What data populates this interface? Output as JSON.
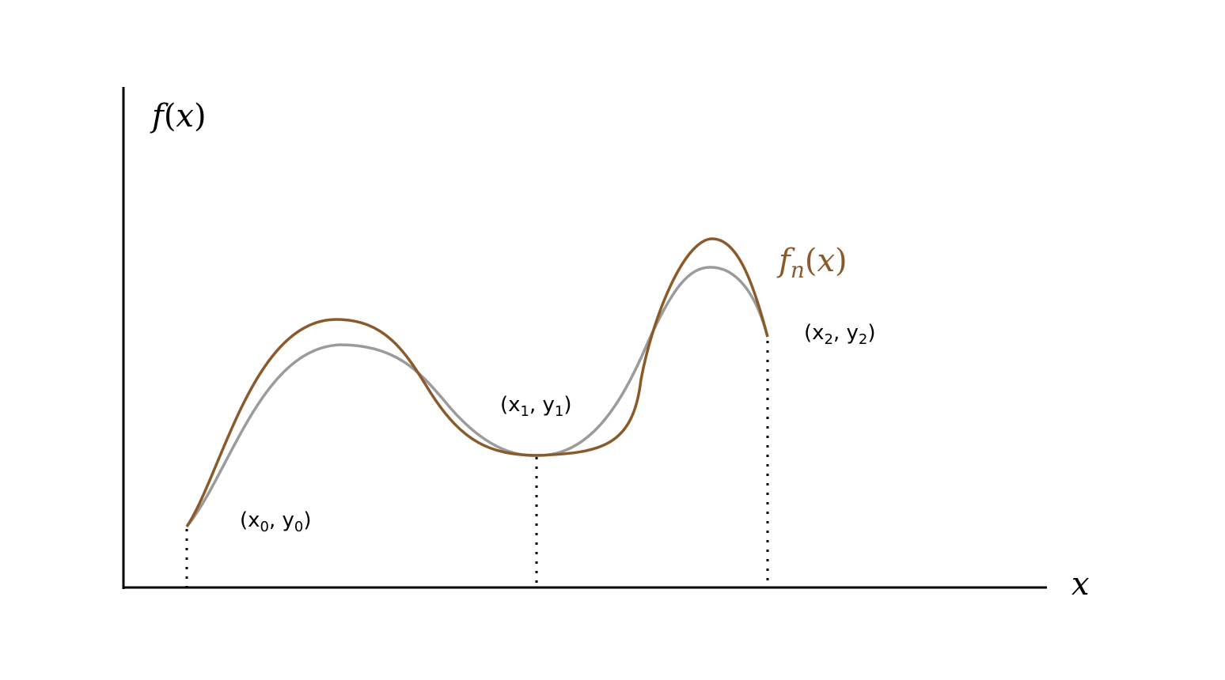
{
  "diagram": {
    "y_axis_label": {
      "func": "f",
      "open": "(",
      "var": "x",
      "close": ")"
    },
    "x_axis_label": "x",
    "approx_label": {
      "func": "f",
      "sub": "n",
      "open": "(",
      "var": "x",
      "close": ")"
    },
    "points": [
      {
        "open": "(x",
        "sub_x": "0",
        "sep": ", y",
        "sub_y": "0",
        "close": ")"
      },
      {
        "open": "(x",
        "sub_x": "1",
        "sep": ", y",
        "sub_y": "1",
        "close": ")"
      },
      {
        "open": "(x",
        "sub_x": "2",
        "sep": ", y",
        "sub_y": "2",
        "close": ")"
      }
    ],
    "colors": {
      "original_curve": "#9b9b9b",
      "approx_curve": "#8b5a2b",
      "axes": "#000000"
    }
  }
}
